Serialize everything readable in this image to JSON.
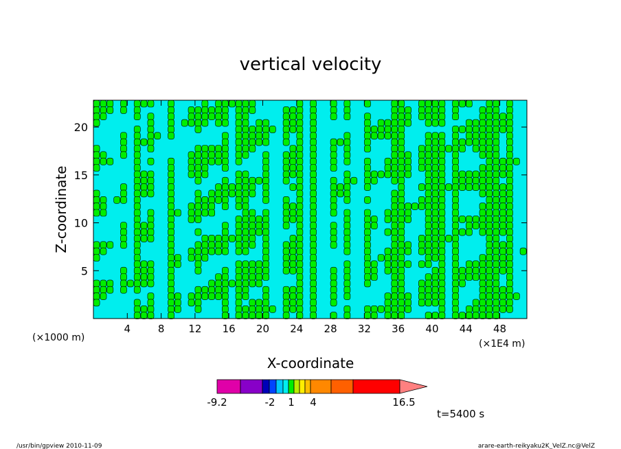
{
  "chart_data": {
    "type": "heatmap",
    "title": "vertical velocity",
    "xlabel": "X-coordinate",
    "ylabel": "Z-coordinate",
    "x_unit_label": "(×1E4 m)",
    "y_unit_label": "(×1000 m)",
    "x_ticks": [
      4,
      8,
      12,
      16,
      20,
      24,
      28,
      32,
      36,
      40,
      44,
      48
    ],
    "y_ticks": [
      5,
      10,
      15,
      20
    ],
    "xlim": [
      0,
      51.2
    ],
    "ylim": [
      0,
      22.8
    ],
    "field_colors": {
      "negative": "#00eeee",
      "positive": "#00ee00",
      "contour": "#000000"
    },
    "colorbar": {
      "colors": [
        "#e000a8",
        "#8800c8",
        "#0000b8",
        "#0044ff",
        "#00c8ff",
        "#00eeee",
        "#00ee00",
        "#bbee00",
        "#ffee00",
        "#ffc000",
        "#ff8800",
        "#ff6000",
        "#ff0000",
        "#ff8080"
      ],
      "labels": [
        "-9.2",
        "-2",
        "1",
        "4",
        "16.5"
      ]
    },
    "time_label": "t=5400 s"
  },
  "footer": {
    "left": "/usr/bin/gpview   2010-11-09",
    "right": "arare-earth-reikyaku2K_VelZ.nc@VelZ"
  }
}
